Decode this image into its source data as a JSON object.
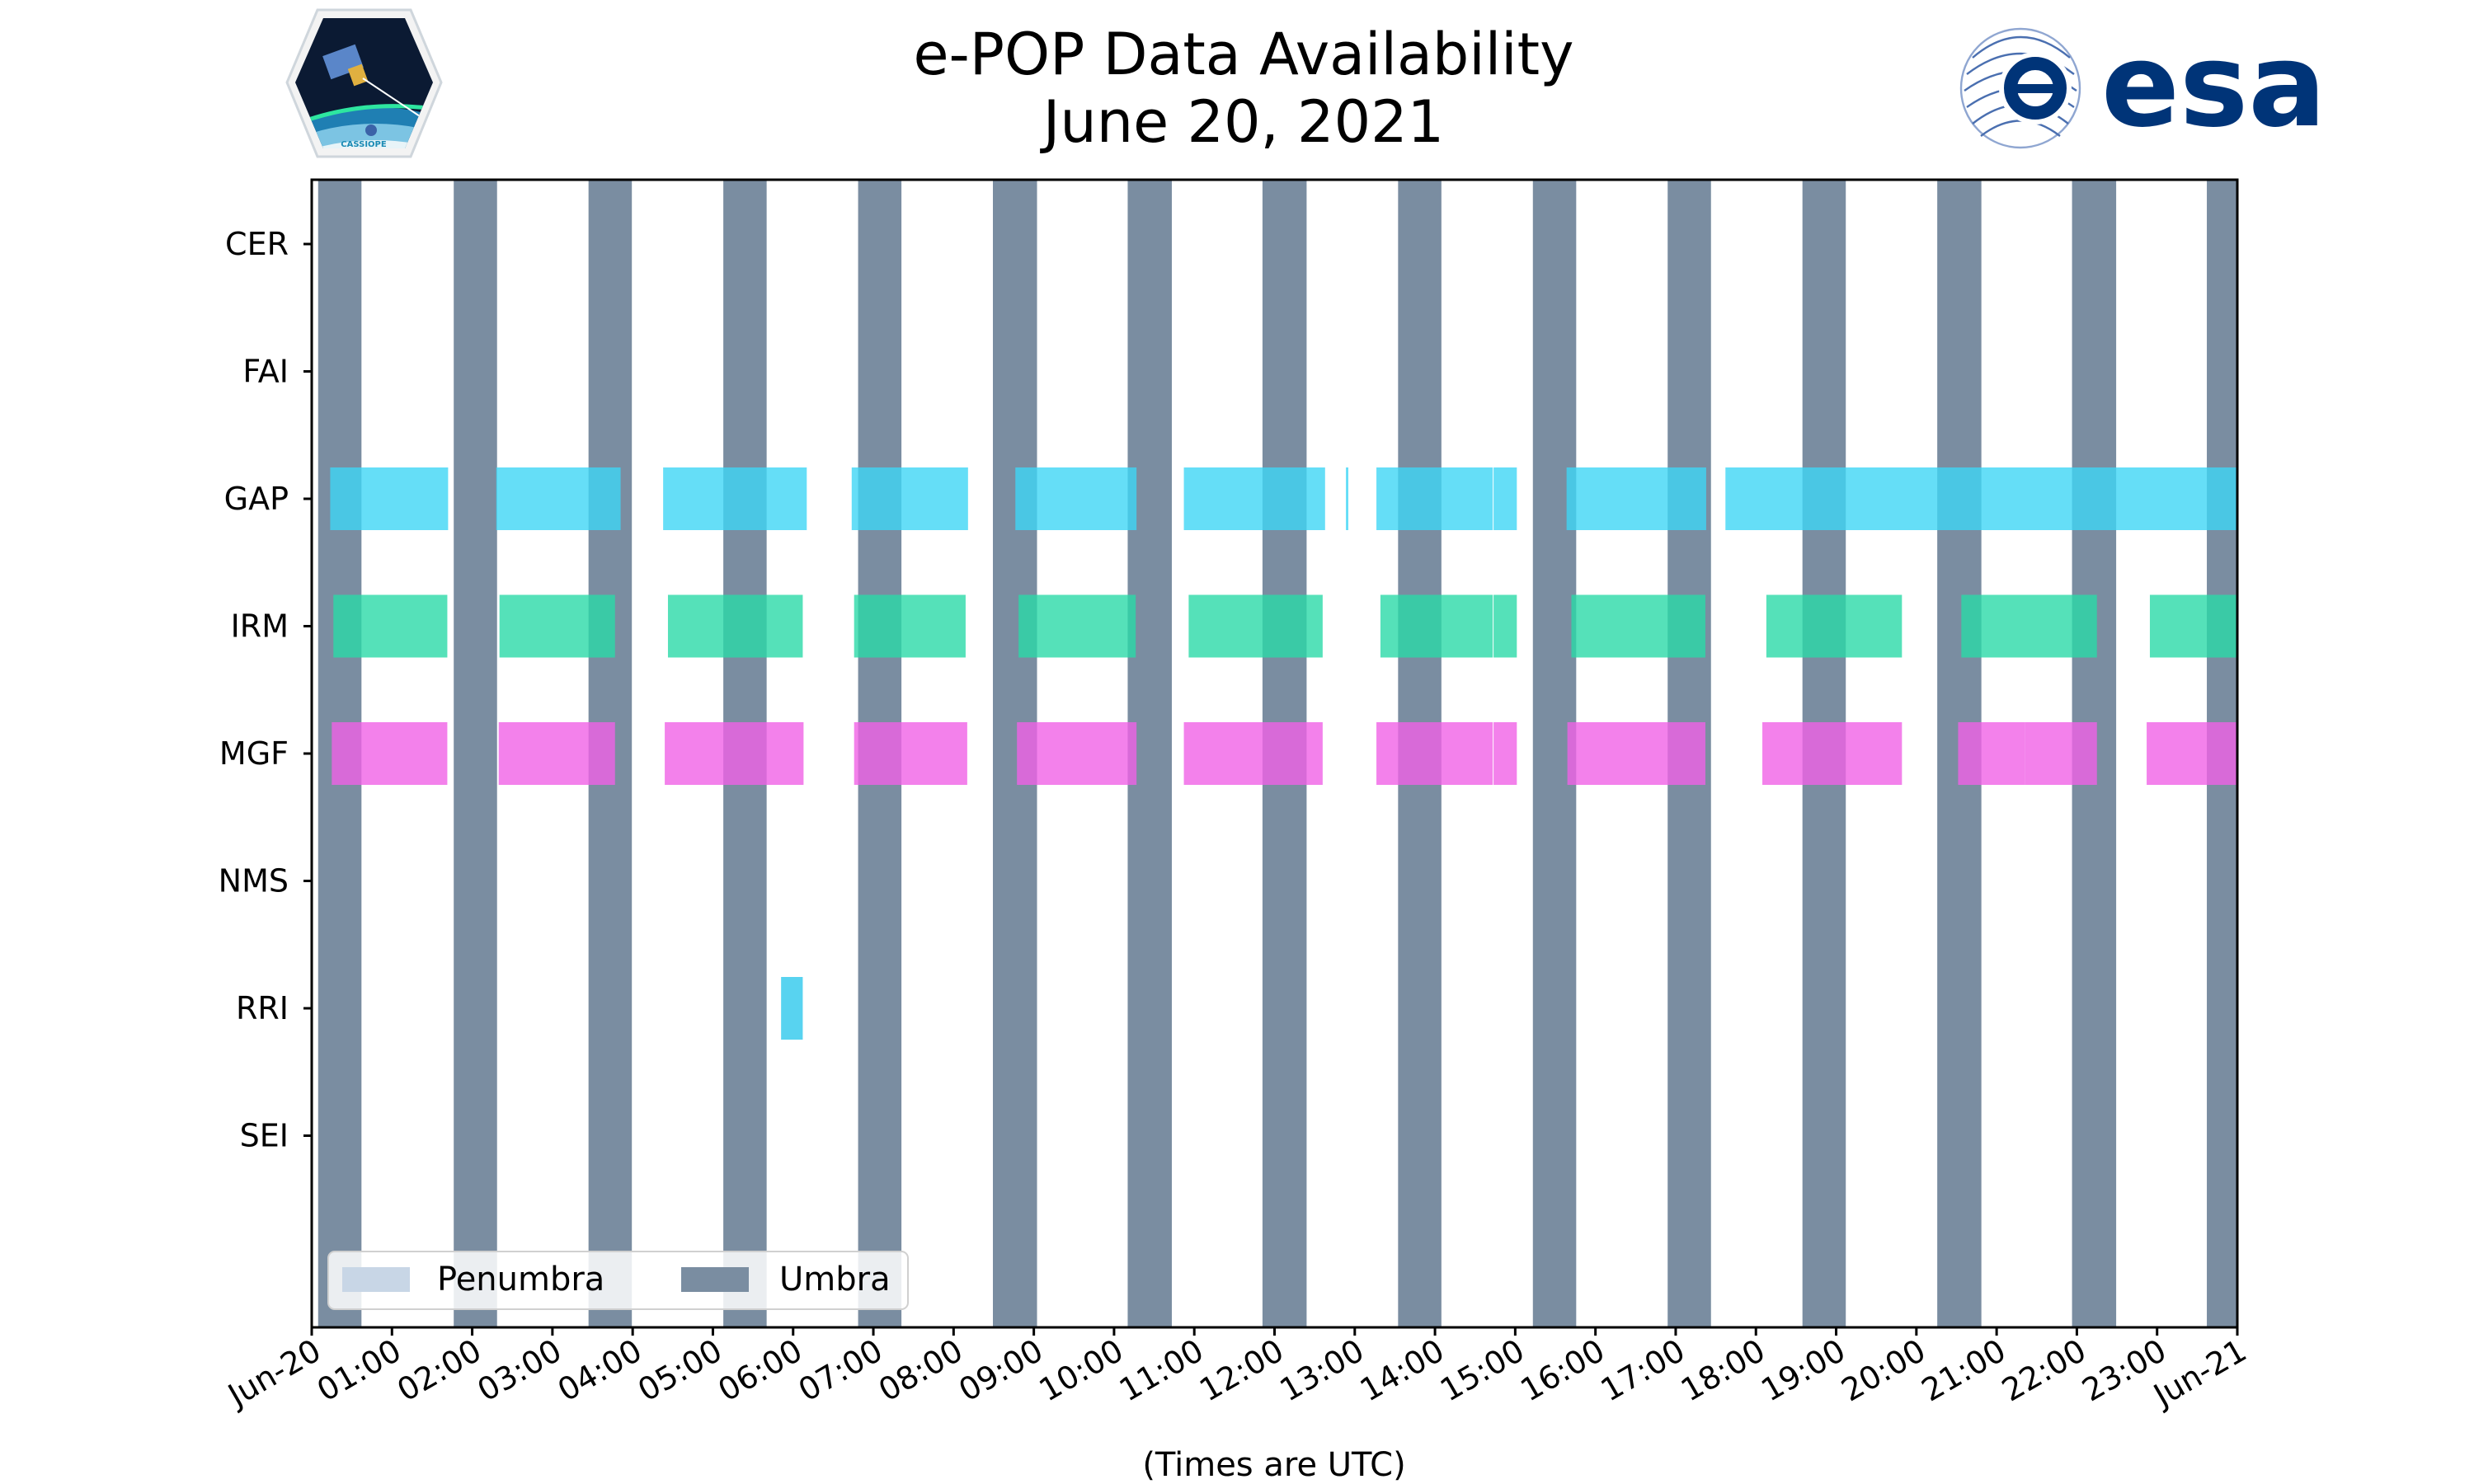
{
  "chart_data": {
    "type": "timeline",
    "title_line1": "e-POP Data Availability",
    "title_line2": "June 20, 2021",
    "xlabel": "(Times are UTC)",
    "xlim_hours": [
      0,
      24
    ],
    "x_ticks": [
      {
        "hour": 0,
        "label": "Jun-20"
      },
      {
        "hour": 1,
        "label": "01:00"
      },
      {
        "hour": 2,
        "label": "02:00"
      },
      {
        "hour": 3,
        "label": "03:00"
      },
      {
        "hour": 4,
        "label": "04:00"
      },
      {
        "hour": 5,
        "label": "05:00"
      },
      {
        "hour": 6,
        "label": "06:00"
      },
      {
        "hour": 7,
        "label": "07:00"
      },
      {
        "hour": 8,
        "label": "08:00"
      },
      {
        "hour": 9,
        "label": "09:00"
      },
      {
        "hour": 10,
        "label": "10:00"
      },
      {
        "hour": 11,
        "label": "11:00"
      },
      {
        "hour": 12,
        "label": "12:00"
      },
      {
        "hour": 13,
        "label": "13:00"
      },
      {
        "hour": 14,
        "label": "14:00"
      },
      {
        "hour": 15,
        "label": "15:00"
      },
      {
        "hour": 16,
        "label": "16:00"
      },
      {
        "hour": 17,
        "label": "17:00"
      },
      {
        "hour": 18,
        "label": "18:00"
      },
      {
        "hour": 19,
        "label": "19:00"
      },
      {
        "hour": 20,
        "label": "20:00"
      },
      {
        "hour": 21,
        "label": "21:00"
      },
      {
        "hour": 22,
        "label": "22:00"
      },
      {
        "hour": 23,
        "label": "23:00"
      },
      {
        "hour": 24,
        "label": "Jun-21"
      }
    ],
    "instruments": [
      "CER",
      "FAI",
      "GAP",
      "IRM",
      "MGF",
      "NMS",
      "RRI",
      "SEI"
    ],
    "umbra_intervals": [
      [
        0.08,
        0.62
      ],
      [
        1.77,
        2.31
      ],
      [
        3.45,
        3.99
      ],
      [
        5.13,
        5.67
      ],
      [
        6.81,
        7.35
      ],
      [
        8.49,
        9.04
      ],
      [
        10.17,
        10.72
      ],
      [
        11.85,
        12.4
      ],
      [
        13.54,
        14.08
      ],
      [
        15.22,
        15.76
      ],
      [
        16.9,
        17.44
      ],
      [
        18.58,
        19.12
      ],
      [
        20.26,
        20.81
      ],
      [
        21.94,
        22.49
      ],
      [
        23.62,
        24.0
      ]
    ],
    "penumbra_intervals": [],
    "series": [
      {
        "name": "CER",
        "color": "#3fd6f5",
        "intervals": []
      },
      {
        "name": "FAI",
        "color": "#3fd6f5",
        "intervals": []
      },
      {
        "name": "GAP",
        "color": "#3fd6f5",
        "intervals": [
          [
            0.23,
            1.7
          ],
          [
            2.3,
            3.85
          ],
          [
            4.38,
            6.17
          ],
          [
            6.73,
            8.18
          ],
          [
            8.77,
            10.28
          ],
          [
            10.87,
            12.63
          ],
          [
            12.89,
            12.92
          ],
          [
            13.27,
            14.72
          ],
          [
            14.73,
            15.02
          ],
          [
            15.64,
            17.38
          ],
          [
            17.62,
            24.0
          ]
        ]
      },
      {
        "name": "IRM",
        "color": "#2bd9a7",
        "intervals": [
          [
            0.27,
            1.69
          ],
          [
            2.34,
            3.78
          ],
          [
            4.44,
            6.12
          ],
          [
            6.76,
            8.15
          ],
          [
            8.81,
            10.27
          ],
          [
            10.93,
            12.6
          ],
          [
            13.32,
            14.72
          ],
          [
            14.73,
            15.02
          ],
          [
            15.7,
            17.37
          ],
          [
            18.13,
            19.82
          ],
          [
            20.56,
            22.25
          ],
          [
            22.91,
            24.0
          ]
        ]
      },
      {
        "name": "MGF",
        "color": "#f062e6",
        "intervals": [
          [
            0.25,
            1.69
          ],
          [
            2.33,
            3.78
          ],
          [
            4.4,
            6.13
          ],
          [
            6.76,
            8.17
          ],
          [
            8.79,
            10.28
          ],
          [
            10.87,
            12.6
          ],
          [
            13.27,
            14.72
          ],
          [
            14.73,
            15.02
          ],
          [
            15.65,
            17.37
          ],
          [
            18.08,
            19.82
          ],
          [
            20.52,
            21.35
          ],
          [
            21.35,
            22.25
          ],
          [
            22.87,
            24.0
          ]
        ]
      },
      {
        "name": "NMS",
        "color": "#3fd6f5",
        "intervals": []
      },
      {
        "name": "RRI",
        "color": "#2ec8ec",
        "intervals": [
          [
            5.85,
            6.12
          ]
        ]
      },
      {
        "name": "SEI",
        "color": "#3fd6f5",
        "intervals": []
      }
    ],
    "legend": {
      "position": "lower-left",
      "entries": [
        {
          "label": "Penumbra",
          "color": "#c8d6e6"
        },
        {
          "label": "Umbra",
          "color": "#7a8da1"
        }
      ]
    },
    "umbra_color": "#7a8da1"
  },
  "logos": {
    "left": {
      "icon": "cassiope-satellite-logo",
      "text": "CASSIOPE"
    },
    "right": {
      "icon": "esa-logo",
      "text": "esa"
    }
  }
}
